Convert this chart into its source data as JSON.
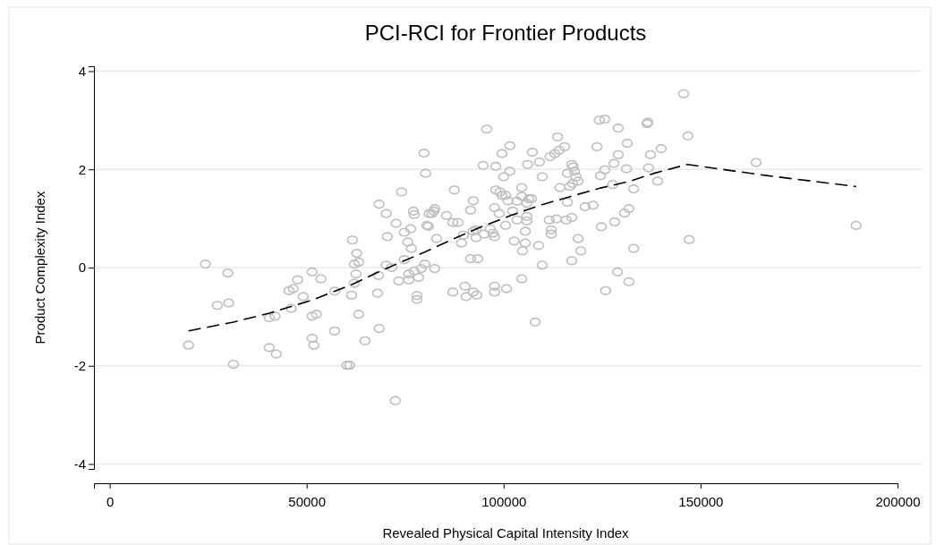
{
  "chart_data": {
    "type": "scatter",
    "title": "PCI-RCI for Frontier Products",
    "xlabel": "Revealed Physical Capital Intensity Index",
    "ylabel": "Product Complexity Index",
    "xlim": [
      -4000,
      200000
    ],
    "xticks": [
      0,
      50000,
      100000,
      150000,
      200000
    ],
    "ylim": [
      -4.1,
      4.1
    ],
    "yticks": [
      -4,
      -2,
      0,
      2,
      4
    ],
    "grid": "y",
    "series": [
      {
        "marker": "circle",
        "color": "#bfbfbf",
        "x": [
          20000,
          24300,
          27300,
          30000,
          30200,
          31400,
          40500,
          42000,
          40500,
          42300,
          45500,
          46600,
          47700,
          49100,
          46100,
          51400,
          53600,
          51400,
          52500,
          51400,
          51800,
          57100,
          57100,
          61600,
          62700,
          62100,
          63200,
          62500,
          62100,
          61400,
          63200,
          64800,
          60200,
          60900,
          68400,
          68000,
          72500,
          68400,
          70200,
          74100,
          80200,
          70500,
          72700,
          74800,
          76400,
          77100,
          77300,
          75700,
          76600,
          74800,
          70200,
          71600,
          68200,
          73400,
          75900,
          75900,
          77300,
          78400,
          79100,
          80000,
          78000,
          78000,
          80500,
          81100,
          79800,
          95700,
          101600,
          99600,
          94800,
          98000,
          101600,
          100000,
          107300,
          106100,
          109100,
          109800,
          113700,
          111800,
          113000,
          114100,
          115500,
          117300,
          117700,
          118000,
          116200,
          118400,
          118900,
          117500,
          116800,
          114300,
          123700,
          124300,
          125700,
          129100,
          131400,
          129100,
          128000,
          125700,
          124600,
          131200,
          127700,
          133000,
          136400,
          136600,
          137300,
          136800,
          87500,
          92300,
          91600,
          81800,
          82300,
          82500,
          85500,
          80900,
          87100,
          88400,
          83000,
          89800,
          92300,
          93000,
          89300,
          93000,
          95000,
          96600,
          97300,
          97700,
          98000,
          99100,
          99600,
          100500,
          101100,
          103400,
          104600,
          104600,
          106400,
          107100,
          105900,
          97700,
          98900,
          100500,
          102300,
          103400,
          105900,
          105900,
          105500,
          102700,
          105500,
          104800,
          108900,
          112100,
          112100,
          111600,
          113400,
          115900,
          117300,
          116200,
          120700,
          122700,
          118900,
          119600,
          117300,
          109800,
          124800,
          128200,
          130700,
          131800,
          133000,
          91600,
          93400,
          82500,
          87100,
          90200,
          90500,
          92300,
          93200,
          97700,
          97700,
          100700,
          104600,
          108000,
          125900,
          128900,
          131800,
          145700,
          146800,
          140000,
          164100,
          139100,
          147100,
          189500
        ],
        "values": [
          -1.58,
          0.07,
          -0.77,
          -0.11,
          -0.72,
          -1.97,
          -1.02,
          -0.99,
          -1.63,
          -1.76,
          -0.47,
          -0.43,
          -0.25,
          -0.59,
          -0.83,
          -0.09,
          -0.23,
          -0.99,
          -0.95,
          -1.44,
          -1.58,
          -0.48,
          -1.29,
          0.56,
          0.29,
          0.07,
          0.11,
          -0.13,
          -0.32,
          -0.56,
          -0.95,
          -1.49,
          -1.99,
          -1.99,
          -1.24,
          -0.52,
          -2.71,
          1.29,
          1.1,
          1.54,
          1.92,
          0.63,
          0.9,
          0.72,
          0.79,
          1.15,
          1.08,
          0.52,
          0.39,
          0.16,
          0.05,
          0.0,
          -0.16,
          -0.27,
          -0.25,
          -0.13,
          -0.07,
          -0.2,
          -0.02,
          0.07,
          -0.57,
          -0.65,
          0.86,
          1.1,
          2.33,
          2.82,
          2.48,
          2.32,
          2.08,
          2.06,
          1.96,
          1.85,
          2.35,
          2.1,
          2.15,
          1.85,
          2.66,
          2.26,
          2.32,
          2.39,
          2.46,
          2.1,
          2.05,
          1.96,
          1.92,
          1.85,
          1.76,
          1.71,
          1.65,
          1.63,
          2.46,
          3.0,
          3.02,
          2.84,
          2.53,
          2.3,
          2.12,
          1.99,
          1.87,
          2.01,
          1.69,
          1.6,
          2.93,
          2.96,
          2.3,
          2.03,
          1.58,
          1.36,
          1.17,
          1.1,
          1.15,
          1.2,
          1.06,
          0.84,
          0.92,
          0.92,
          0.59,
          0.66,
          0.74,
          0.77,
          0.5,
          0.61,
          0.68,
          0.79,
          0.7,
          0.63,
          1.58,
          1.54,
          1.47,
          1.47,
          1.36,
          1.35,
          1.63,
          1.45,
          1.4,
          1.4,
          1.31,
          1.22,
          1.1,
          0.86,
          1.15,
          0.97,
          1.04,
          0.95,
          0.74,
          0.54,
          0.5,
          0.34,
          0.45,
          0.77,
          0.68,
          0.97,
          0.99,
          0.97,
          1.02,
          1.33,
          1.24,
          1.27,
          0.59,
          0.34,
          0.14,
          0.05,
          0.83,
          0.93,
          1.11,
          1.2,
          0.39,
          0.18,
          0.18,
          -0.02,
          -0.5,
          -0.38,
          -0.59,
          -0.5,
          -0.56,
          -0.38,
          -0.5,
          -0.43,
          -0.23,
          -1.11,
          -0.47,
          -0.09,
          -0.29,
          3.54,
          2.68,
          2.42,
          2.14,
          1.76,
          0.57,
          0.86
        ]
      },
      {
        "type": "line",
        "color": "#000000",
        "line_style": "dashed",
        "x": [
          20000,
          31400,
          40500,
          51800,
          61600,
          67700,
          73900,
          79800,
          86600,
          94300,
          101800,
          109300,
          117100,
          124600,
          132100,
          138200,
          146600,
          167100,
          189500
        ],
        "values": [
          -1.29,
          -1.11,
          -0.93,
          -0.65,
          -0.34,
          -0.11,
          0.11,
          0.31,
          0.56,
          0.83,
          1.06,
          1.27,
          1.45,
          1.62,
          1.76,
          1.92,
          2.1,
          1.87,
          1.65
        ]
      }
    ]
  }
}
